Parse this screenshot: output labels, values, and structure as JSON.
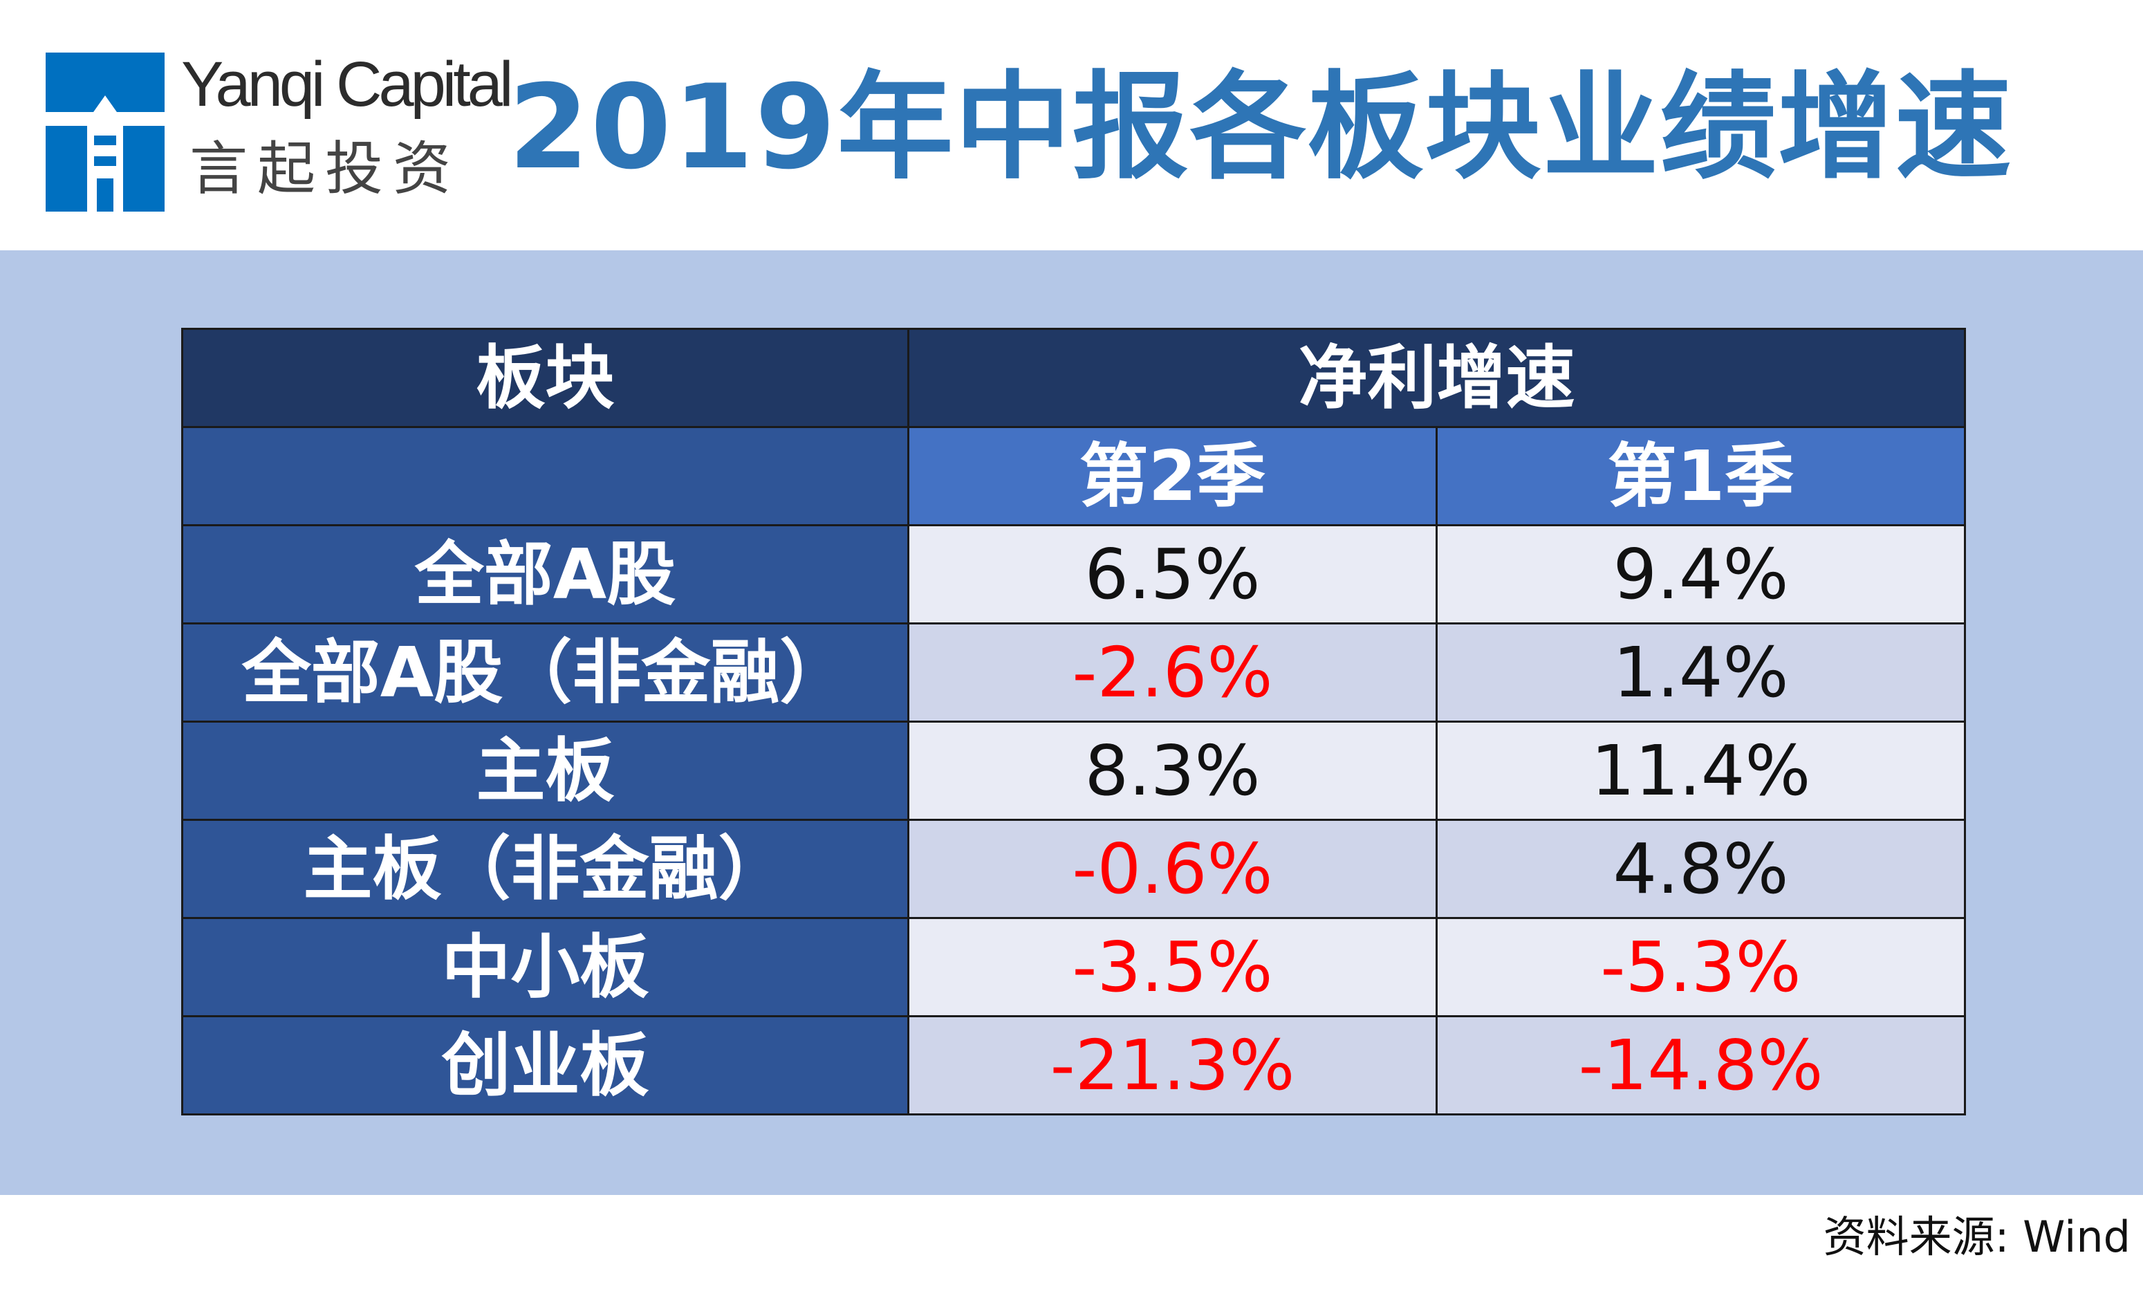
{
  "logo": {
    "name_en": "Yanqi Capital",
    "name_cn": "言起投资",
    "icon": "lighthouse-logo-icon",
    "brand_color": "#0070c0"
  },
  "title": "2019年中报各板块业绩增速",
  "table": {
    "col_sector": "板块",
    "col_group": "净利增速",
    "col_q2": "第2季",
    "col_q1": "第1季"
  },
  "chart_data": {
    "type": "table",
    "title": "2019年中报各板块业绩增速",
    "group_header": "净利增速",
    "columns": [
      "板块",
      "第2季",
      "第1季"
    ],
    "rows": [
      {
        "sector": "全部A股",
        "q2": "6.5%",
        "q1": "9.4%"
      },
      {
        "sector": "全部A股（非金融）",
        "q2": "-2.6%",
        "q1": "1.4%"
      },
      {
        "sector": "主板",
        "q2": "8.3%",
        "q1": "11.4%"
      },
      {
        "sector": "主板（非金融）",
        "q2": "-0.6%",
        "q1": "4.8%"
      },
      {
        "sector": "中小板",
        "q2": "-3.5%",
        "q1": "-5.3%"
      },
      {
        "sector": "创业板",
        "q2": "-21.3%",
        "q1": "-14.8%"
      }
    ],
    "colors": {
      "header_dark": "#203864",
      "header_quarter": "#4472c4",
      "sector_cell": "#2f5597",
      "negative": "#ff0000",
      "positive": "#111111",
      "band": "#b4c7e7",
      "title": "#2e75b6"
    }
  },
  "source": "资料来源: Wind"
}
